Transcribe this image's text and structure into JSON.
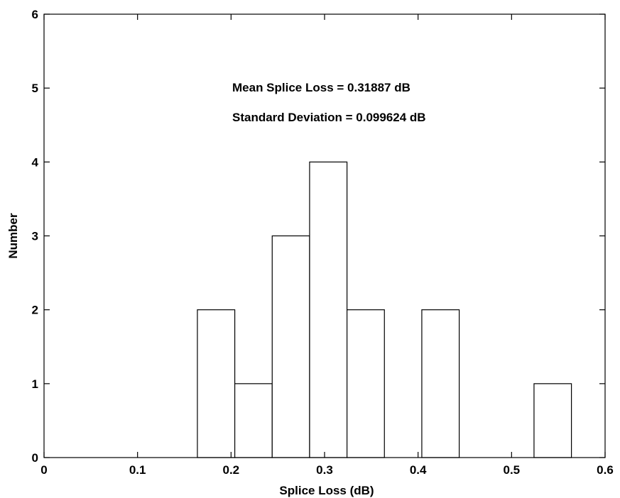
{
  "chart_data": {
    "type": "bar",
    "title": "",
    "xlabel": "Splice Loss (dB)",
    "ylabel": "Number",
    "xlim": [
      0,
      0.6
    ],
    "ylim": [
      0,
      6
    ],
    "xticks": [
      0,
      0.1,
      0.2,
      0.3,
      0.4,
      0.5,
      0.6
    ],
    "xtick_labels": [
      "0",
      "0.1",
      "0.2",
      "0.3",
      "0.4",
      "0.5",
      "0.6"
    ],
    "yticks": [
      0,
      1,
      2,
      3,
      4,
      5,
      6
    ],
    "ytick_labels": [
      "0",
      "1",
      "2",
      "3",
      "4",
      "5",
      "6"
    ],
    "bin_width": 0.04,
    "bins": [
      {
        "x0": 0.164,
        "x1": 0.204,
        "value": 2
      },
      {
        "x0": 0.204,
        "x1": 0.244,
        "value": 1
      },
      {
        "x0": 0.244,
        "x1": 0.284,
        "value": 3
      },
      {
        "x0": 0.284,
        "x1": 0.324,
        "value": 4
      },
      {
        "x0": 0.324,
        "x1": 0.364,
        "value": 2
      },
      {
        "x0": 0.364,
        "x1": 0.404,
        "value": 0
      },
      {
        "x0": 0.404,
        "x1": 0.444,
        "value": 2
      },
      {
        "x0": 0.444,
        "x1": 0.484,
        "value": 0
      },
      {
        "x0": 0.484,
        "x1": 0.524,
        "value": 0
      },
      {
        "x0": 0.524,
        "x1": 0.564,
        "value": 1
      }
    ],
    "annotations": [
      "Mean Splice Loss = 0.31887 dB",
      "Standard Deviation = 0.099624 dB"
    ],
    "grid": false,
    "bar_fill": "#ffffff",
    "bar_edge": "#000000"
  }
}
